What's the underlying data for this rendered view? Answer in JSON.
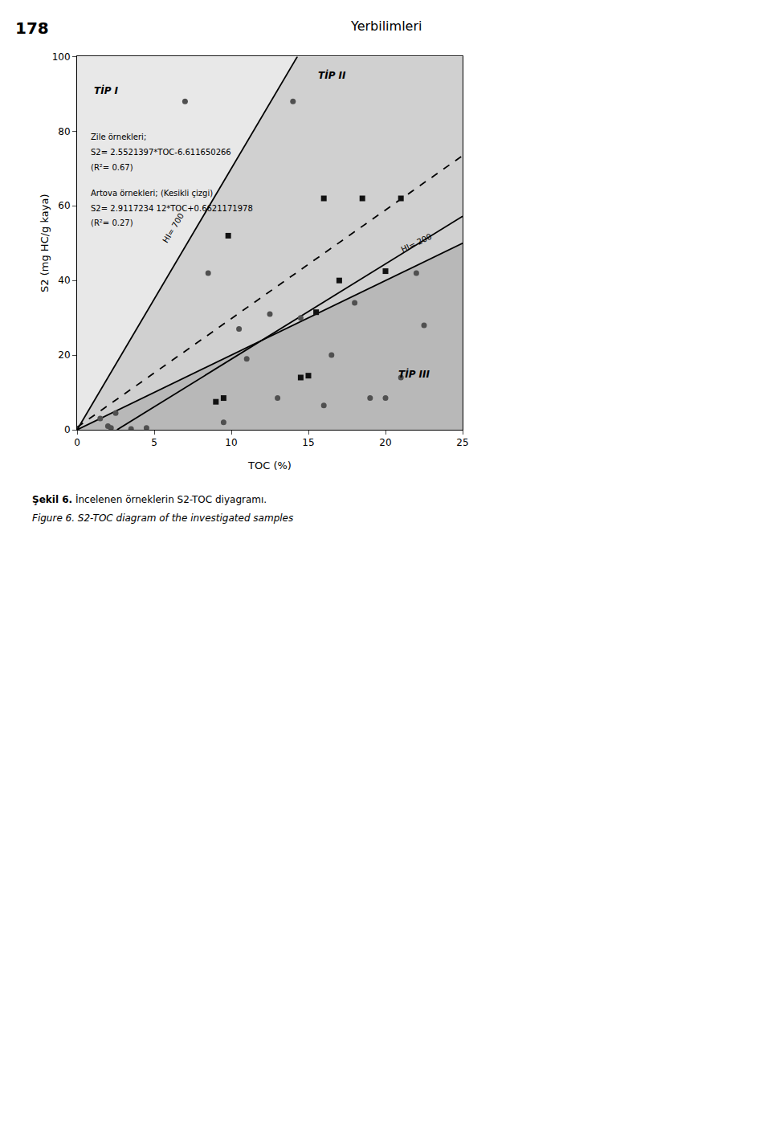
{
  "page": {
    "page_number": "178",
    "journal_name": "Yerbilimleri",
    "caption_bold": "Şekil 6.",
    "caption_normal": "İncelenen örneklerin S2-TOC diyagramı.",
    "caption_italic": "Figure 6. S2-TOC diagram of the investigated samples"
  },
  "chart_data": {
    "type": "scatter",
    "xlabel": "TOC (%)",
    "ylabel": "S2 (mg HC/g kaya)",
    "xlim": [
      0,
      25
    ],
    "ylim": [
      0,
      100
    ],
    "xticks": [
      0,
      5,
      10,
      15,
      20,
      25
    ],
    "yticks": [
      0,
      20,
      40,
      60,
      80,
      100
    ],
    "grid": false,
    "series": [
      {
        "type": "area",
        "color": "#e8e8e8",
        "x": [
          0,
          14.2857142857,
          0
        ],
        "y": [
          0,
          100,
          100
        ]
      },
      {
        "type": "area",
        "color": "#d0d0d0",
        "x": [
          0,
          14.2857142857,
          25,
          25
        ],
        "y": [
          0,
          100,
          100,
          50
        ]
      },
      {
        "type": "area",
        "color": "#b8b8b8",
        "x": [
          0,
          25,
          25
        ],
        "y": [
          0,
          50,
          0
        ]
      },
      {
        "type": "line",
        "color": "#000000",
        "line_style": "solid",
        "x": [
          0,
          14.2857142857
        ],
        "y": [
          0,
          100
        ]
      },
      {
        "type": "line",
        "color": "#000000",
        "line_style": "solid",
        "x": [
          0,
          25
        ],
        "y": [
          0,
          50
        ]
      },
      {
        "type": "line",
        "color": "#000000",
        "line_style": "solid",
        "x": [
          2.59063024,
          25
        ],
        "y": [
          0,
          57.191842234
        ]
      },
      {
        "type": "line",
        "color": "#000000",
        "line_style": "dashed",
        "x": [
          0,
          25
        ],
        "y": [
          0.6621171978,
          73.4552021978
        ]
      },
      {
        "type": "scatter",
        "color": "#505050",
        "marker": "circle",
        "x": [
          1.5,
          2.0,
          2.2,
          2.5,
          3.5,
          4.5,
          7.0,
          8.5,
          9.5,
          10.5,
          11.0,
          12.5,
          13.0,
          14.0,
          14.5,
          16.0,
          16.5,
          18.0,
          19.0,
          20.0,
          21.0,
          22.0,
          22.5
        ],
        "y": [
          3.0,
          1.0,
          0.5,
          4.5,
          0.2,
          0.5,
          88.0,
          42.0,
          2.0,
          27.0,
          19.0,
          31.0,
          8.5,
          88.0,
          30.0,
          6.5,
          20.0,
          34.0,
          8.5,
          8.5,
          14.0,
          42.0,
          28.0
        ]
      },
      {
        "type": "scatter",
        "color": "#111111",
        "marker": "square",
        "x": [
          9.0,
          9.5,
          9.8,
          14.5,
          15.0,
          15.5,
          16.0,
          17.0,
          18.5,
          20.0,
          21.0
        ],
        "y": [
          7.5,
          8.5,
          52.0,
          14.0,
          14.5,
          31.5,
          62.0,
          40.0,
          62.0,
          42.5,
          62.0
        ]
      }
    ],
    "zone_labels": [
      {
        "text": "TİP I",
        "x": 1.0,
        "y": 93
      },
      {
        "text": "TİP II",
        "x": 15.5,
        "y": 97
      },
      {
        "text": "TİP III",
        "x": 23.0,
        "y": 15
      }
    ],
    "line_labels": [
      {
        "text": "HI= 700",
        "x": 6.2,
        "y": 54
      },
      {
        "text": "HI= 200",
        "x": 22.0,
        "y": 50
      }
    ],
    "equation_labels": [
      {
        "text": "Zile örnekleri;",
        "x": 0.8,
        "y": 80
      },
      {
        "text": "S2= 2.5521397*TOC-6.611650266",
        "x": 0.8,
        "y": 76
      },
      {
        "text": "(R²= 0.67)",
        "x": 0.8,
        "y": 72
      },
      {
        "text": "Artova örnekleri; (Kesikli çizgi)",
        "x": 0.8,
        "y": 65
      },
      {
        "text": "S2= 2.9117234 12*TOC+0.6621171978",
        "x": 0.8,
        "y": 61
      },
      {
        "text": "(R²= 0.27)",
        "x": 0.8,
        "y": 57
      }
    ]
  }
}
